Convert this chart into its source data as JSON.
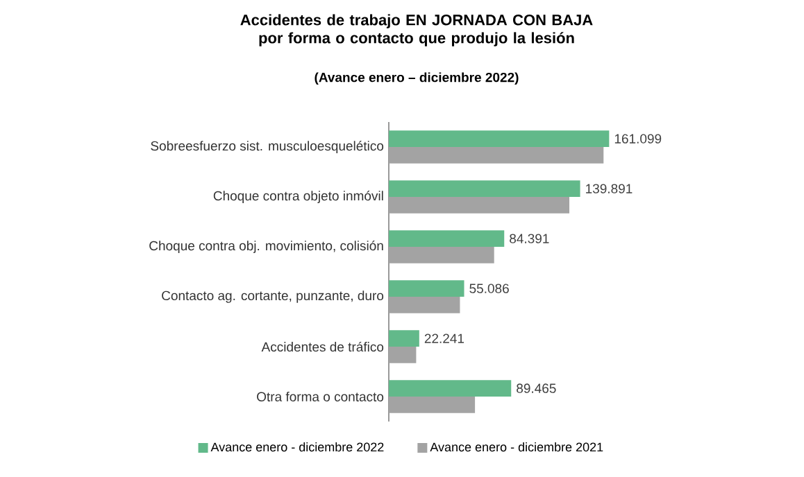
{
  "chart_data": {
    "type": "bar",
    "orientation": "horizontal",
    "title": "Accidentes de trabajo EN JORNADA CON BAJA por forma o contacto que produjo la lesión",
    "subtitle": "(Avance enero – diciembre 2022)",
    "categories": [
      "Sobreesfuerzo sist. musculoesquelético",
      "Choque contra objeto inmóvil",
      "Choque contra obj. movimiento, colisión",
      "Contacto ag. cortante, punzante, duro",
      "Accidentes de tráfico",
      "Otra forma o contacto"
    ],
    "series": [
      {
        "name": "Avance enero - diciembre 2022",
        "color": "#62b98a",
        "values": [
          161099,
          139891,
          84391,
          55086,
          22241,
          89465
        ],
        "value_labels": [
          "161.099",
          "139.891",
          "84.391",
          "55.086",
          "22.241",
          "89.465"
        ]
      },
      {
        "name": "Avance enero - diciembre 2021",
        "color": "#a3a3a3",
        "values": [
          157000,
          132000,
          77000,
          52000,
          20000,
          63000
        ]
      }
    ],
    "legend": "bottom"
  }
}
